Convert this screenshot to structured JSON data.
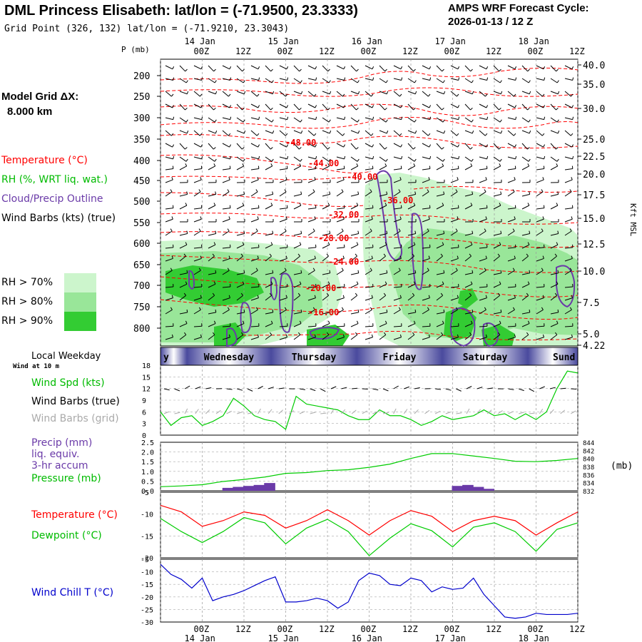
{
  "header": {
    "title": "DML Princess Elisabeth:  lat/lon = (-71.9500, 23.3333)",
    "grid_point": "Grid Point (326, 132) lat/lon = (-71.9210, 23.3043)",
    "cycle_line1": "AMPS WRF Forecast Cycle:",
    "cycle_line2": "2026-01-13 / 12  Z"
  },
  "left_panel": {
    "model_grid_label": "Model Grid ΔX:",
    "model_grid_value": "8.000 km",
    "legend_temperature": "Temperature (°C)",
    "legend_rh": "RH (%, WRT liq. wat.)",
    "legend_cloud": "Cloud/Precip Outline",
    "legend_wind": "Wind Barbs (kts) (true)",
    "rh_levels": [
      "RH > 70%",
      "RH > 80%",
      "RH > 90%"
    ],
    "local_weekday": "Local Weekday",
    "wind_at_10m": "Wind at 10 m",
    "wind_spd": "Wind Spd (kts)",
    "wind_barbs_true": "Wind Barbs (true)",
    "wind_barbs_grid": "Wind Barbs (grid)",
    "precip_l1": "Precip (mm)",
    "precip_l2": "liq. equiv.",
    "precip_l3": "3-hr accum",
    "pressure": "Pressure (mb)",
    "temperature": "Temperature (°C)",
    "dewpoint": "Dewpoint (°C)",
    "wind_chill": "Wind Chill T (°C)"
  },
  "colors": {
    "temp": "#ff0000",
    "rh": "#00cc00",
    "cloud": "#6a3aa8",
    "wind_barb": "#000000",
    "wind_barb_grid": "#aaaaaa",
    "wind_chill": "#0000cc",
    "rh70": "#ccf5cc",
    "rh80": "#99e699",
    "rh90": "#33cc33",
    "day_band": "#4a4a9e"
  },
  "chart_data": [
    {
      "type": "line",
      "name": "vertical-cross-section",
      "p_axis_title": "P (mb)",
      "ylabel_right": "Kft MSL",
      "p_ticks": [
        "200",
        "250",
        "300",
        "350",
        "400",
        "450",
        "500",
        "550",
        "600",
        "650",
        "700",
        "750",
        "800"
      ],
      "kft_ticks": [
        "40.0",
        "35.0",
        "30.0",
        "25.0",
        "22.5",
        "20.0",
        "17.5",
        "15.0",
        "12.5",
        "10.0",
        "7.5",
        "5.0",
        "4.22"
      ],
      "time_top_hours": [
        "00Z",
        "12Z",
        "00Z",
        "12Z",
        "00Z",
        "12Z",
        "00Z",
        "12Z",
        "00Z",
        "12Z"
      ],
      "time_top_days": [
        "14 Jan",
        "15 Jan",
        "16 Jan",
        "17 Jan",
        "18 Jan"
      ],
      "temperature_contour_labels": [
        "-48.00",
        "-44.00",
        "-40.00",
        "-36.00",
        "-32.00",
        "-28.00",
        "-24.00",
        "-20.00",
        "-16.00"
      ]
    },
    {
      "type": "bar",
      "name": "weekday-band",
      "days": [
        "y",
        "Wednesday",
        "Thursday",
        "Friday",
        "Saturday",
        "Sund"
      ]
    },
    {
      "type": "line",
      "name": "wind-speed",
      "ylim": [
        0,
        18
      ],
      "y_ticks": [
        "18",
        "15",
        "12",
        "9",
        "6",
        "3",
        "0"
      ],
      "x": [
        0,
        3,
        6,
        9,
        12,
        15,
        18,
        21,
        24,
        27,
        30,
        33,
        36,
        39,
        42,
        45,
        48,
        51,
        54,
        57,
        60,
        63,
        66,
        69,
        72,
        75,
        78,
        81,
        84,
        87,
        90,
        93,
        96,
        99,
        102,
        105,
        108,
        111,
        114,
        117,
        120
      ],
      "values": [
        6,
        2.5,
        4.5,
        5,
        2.5,
        3.5,
        5,
        9.5,
        7.5,
        5,
        4,
        3.5,
        1.5,
        10,
        8,
        7.5,
        7,
        6.5,
        5,
        4,
        4,
        6.5,
        5,
        5,
        4,
        2.5,
        3.5,
        5,
        4,
        4.5,
        5,
        6.5,
        5,
        5.5,
        4,
        5.5,
        4,
        6,
        12,
        16.5,
        16
      ]
    },
    {
      "type": "line",
      "name": "precip-pressure",
      "y_left_ticks": [
        "2.5",
        "2.0",
        "1.5",
        "1.0",
        "0.5",
        "0.0"
      ],
      "y_right_ticks": [
        "844",
        "842",
        "840",
        "838",
        "836",
        "834",
        "832"
      ],
      "y_right_unit": "(mb)",
      "pressure_x": [
        0,
        6,
        12,
        18,
        24,
        30,
        36,
        42,
        48,
        54,
        60,
        66,
        72,
        78,
        84,
        90,
        96,
        102,
        108,
        114,
        120
      ],
      "pressure_values": [
        833,
        833.2,
        833.5,
        834.3,
        834.8,
        835.4,
        836.3,
        836.5,
        837,
        837.2,
        837.8,
        838.6,
        840,
        841.2,
        841.2,
        840.6,
        840,
        839.3,
        839.2,
        839.5,
        840
      ],
      "precip_bars": [
        {
          "x": 18,
          "value": 0.15
        },
        {
          "x": 21,
          "value": 0.2
        },
        {
          "x": 24,
          "value": 0.25
        },
        {
          "x": 27,
          "value": 0.3
        },
        {
          "x": 30,
          "value": 0.4
        },
        {
          "x": 84,
          "value": 0.25
        },
        {
          "x": 87,
          "value": 0.3
        },
        {
          "x": 90,
          "value": 0.2
        },
        {
          "x": 93,
          "value": 0.1
        }
      ]
    },
    {
      "type": "line",
      "name": "temp-dewpoint",
      "y_ticks": [
        "-5",
        "-10",
        "-15",
        "-20"
      ],
      "x": [
        0,
        6,
        12,
        18,
        24,
        30,
        36,
        42,
        48,
        54,
        60,
        66,
        72,
        78,
        84,
        90,
        96,
        102,
        108,
        114,
        120
      ],
      "temperature": [
        -8,
        -9.5,
        -12.8,
        -11.5,
        -9.5,
        -10.3,
        -13.2,
        -11.5,
        -9,
        -11.5,
        -14.8,
        -11.5,
        -9.2,
        -10.5,
        -14,
        -11.5,
        -10.5,
        -11.5,
        -14.8,
        -12,
        -9.5
      ],
      "dewpoint": [
        -11,
        -14,
        -16.5,
        -14,
        -10.8,
        -12,
        -16.8,
        -13.2,
        -11.2,
        -14,
        -19.5,
        -15.5,
        -12.2,
        -13.8,
        -17.5,
        -13,
        -12,
        -14,
        -18.5,
        -13.5,
        -12
      ]
    },
    {
      "type": "line",
      "name": "wind-chill",
      "y_ticks": [
        "-5",
        "-10",
        "-15",
        "-20",
        "-25",
        "-30"
      ],
      "x_hours": [
        "00Z",
        "12Z",
        "00Z",
        "12Z",
        "00Z",
        "12Z",
        "00Z",
        "12Z",
        "00Z",
        "12Z"
      ],
      "x_days": [
        "14 Jan",
        "15 Jan",
        "16 Jan",
        "17 Jan",
        "18 Jan"
      ],
      "x": [
        0,
        3,
        6,
        9,
        12,
        15,
        18,
        21,
        24,
        27,
        30,
        33,
        36,
        39,
        42,
        45,
        48,
        51,
        54,
        57,
        60,
        63,
        66,
        69,
        72,
        75,
        78,
        81,
        84,
        87,
        90,
        93,
        96,
        99,
        102,
        105,
        108,
        111,
        114,
        117,
        120
      ],
      "values": [
        -7,
        -11,
        -13,
        -16.5,
        -12.5,
        -21.5,
        -20,
        -19,
        -17.5,
        -15.5,
        -13.5,
        -12,
        -22,
        -22,
        -21.5,
        -20.5,
        -21.5,
        -24.5,
        -22,
        -13.5,
        -10.5,
        -11.5,
        -15,
        -15.5,
        -12.5,
        -13.5,
        -18,
        -16,
        -17,
        -16.5,
        -12.5,
        -19,
        -23.5,
        -28,
        -28.5,
        -28,
        -26.5,
        -27,
        -27,
        -27,
        -26.5
      ]
    }
  ]
}
